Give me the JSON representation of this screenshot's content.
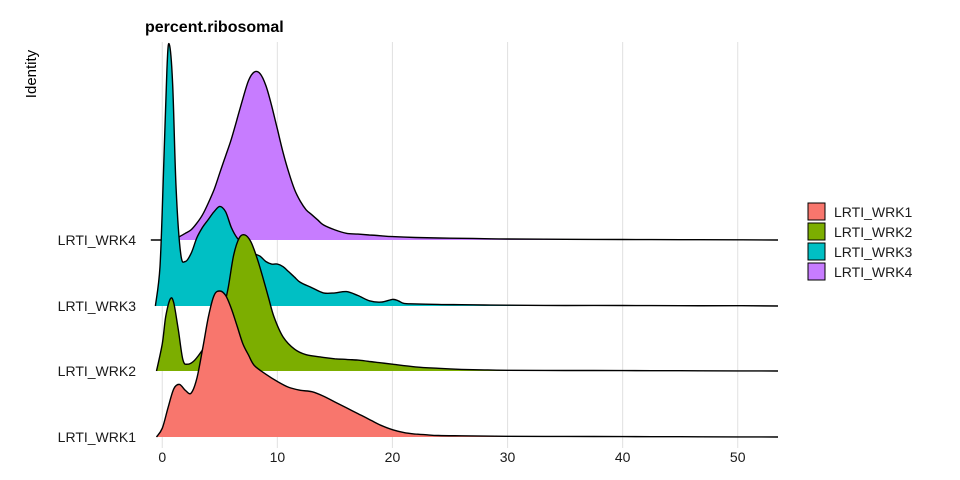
{
  "chart_data": {
    "type": "area",
    "subtype": "ridgeline",
    "title": "percent.ribosomal",
    "xlabel": "",
    "ylabel": "Identity",
    "xlim": [
      -1.5,
      53.5
    ],
    "x_ticks": [
      0,
      10,
      20,
      30,
      40,
      50
    ],
    "grid": {
      "vertical_major": true,
      "horizontal": false
    },
    "legend": {
      "position": "right",
      "entries": [
        "LRTI_WRK1",
        "LRTI_WRK2",
        "LRTI_WRK3",
        "LRTI_WRK4"
      ]
    },
    "categories": [
      "LRTI_WRK1",
      "LRTI_WRK2",
      "LRTI_WRK3",
      "LRTI_WRK4"
    ],
    "colors": [
      "#F8766D",
      "#7CAE00",
      "#00BFC4",
      "#C77CFF"
    ],
    "series": [
      {
        "name": "LRTI_WRK1",
        "x": [
          -0.5,
          0,
          0.5,
          1,
          1.5,
          2,
          2.5,
          3,
          3.5,
          4,
          4.5,
          5,
          5.5,
          6,
          6.5,
          7,
          7.5,
          8,
          9,
          10,
          11,
          12,
          13,
          14,
          15,
          16,
          17,
          18,
          19,
          20,
          21,
          22,
          23,
          24,
          26,
          30,
          35,
          40,
          45,
          50,
          53.5
        ],
        "y": [
          0.0,
          0.06,
          0.2,
          0.33,
          0.36,
          0.32,
          0.3,
          0.4,
          0.6,
          0.82,
          0.97,
          1.0,
          0.97,
          0.88,
          0.76,
          0.64,
          0.56,
          0.49,
          0.43,
          0.38,
          0.34,
          0.32,
          0.31,
          0.28,
          0.24,
          0.2,
          0.16,
          0.12,
          0.08,
          0.05,
          0.03,
          0.02,
          0.015,
          0.01,
          0.008,
          0.005,
          0.004,
          0.003,
          0.002,
          0.001,
          0.0
        ]
      },
      {
        "name": "LRTI_WRK2",
        "x": [
          -0.5,
          0,
          0.3,
          0.7,
          1.0,
          1.4,
          1.8,
          2.2,
          2.7,
          3.2,
          3.7,
          4.2,
          4.7,
          5.2,
          5.7,
          6.2,
          6.7,
          7.2,
          7.7,
          8.2,
          8.7,
          9.2,
          9.7,
          10.5,
          11.5,
          12.5,
          14,
          15,
          16,
          17,
          18,
          19,
          20,
          22,
          24,
          26,
          28,
          30,
          35,
          40,
          45,
          50,
          53.5
        ],
        "y": [
          0.0,
          0.2,
          0.4,
          0.53,
          0.5,
          0.3,
          0.08,
          0.05,
          0.07,
          0.12,
          0.18,
          0.25,
          0.32,
          0.42,
          0.6,
          0.85,
          0.98,
          1.0,
          0.95,
          0.84,
          0.7,
          0.55,
          0.4,
          0.25,
          0.16,
          0.12,
          0.1,
          0.09,
          0.085,
          0.08,
          0.07,
          0.06,
          0.05,
          0.03,
          0.02,
          0.012,
          0.008,
          0.005,
          0.004,
          0.003,
          0.002,
          0.001,
          0.0
        ]
      },
      {
        "name": "LRTI_WRK3",
        "x": [
          -0.6,
          -0.2,
          0.1,
          0.4,
          0.6,
          0.9,
          1.2,
          1.6,
          2.0,
          2.5,
          3.0,
          3.5,
          4.0,
          4.5,
          5.0,
          5.5,
          6.0,
          6.5,
          7.0,
          7.5,
          8.0,
          8.5,
          9.0,
          9.5,
          10.0,
          10.5,
          11,
          11.5,
          12,
          13,
          14,
          15,
          16,
          17,
          18,
          19,
          20,
          20.5,
          21,
          22,
          24,
          26,
          28,
          30,
          35,
          40,
          45,
          50,
          53.5
        ],
        "y": [
          0.0,
          0.15,
          0.5,
          0.9,
          1.0,
          0.85,
          0.45,
          0.2,
          0.17,
          0.2,
          0.26,
          0.3,
          0.33,
          0.36,
          0.38,
          0.36,
          0.3,
          0.26,
          0.24,
          0.22,
          0.2,
          0.19,
          0.17,
          0.16,
          0.16,
          0.15,
          0.13,
          0.11,
          0.09,
          0.07,
          0.05,
          0.05,
          0.055,
          0.04,
          0.02,
          0.015,
          0.025,
          0.02,
          0.01,
          0.008,
          0.006,
          0.005,
          0.004,
          0.003,
          0.002,
          0.002,
          0.001,
          0.001,
          0.0
        ]
      },
      {
        "name": "LRTI_WRK4",
        "x": [
          -1.0,
          0.5,
          1.0,
          1.5,
          2.0,
          2.5,
          3.0,
          3.5,
          4.0,
          4.5,
          5.0,
          5.5,
          6.0,
          6.5,
          7.0,
          7.5,
          8.0,
          8.5,
          9.0,
          9.5,
          10.0,
          10.5,
          11.0,
          11.5,
          12.0,
          12.5,
          13.0,
          13.5,
          14,
          15,
          16,
          17,
          18,
          19,
          20,
          22,
          24,
          26,
          28,
          30,
          35,
          40,
          45,
          50,
          53.5
        ],
        "y": [
          0.0,
          0.0,
          0.003,
          0.02,
          0.04,
          0.06,
          0.1,
          0.15,
          0.22,
          0.3,
          0.4,
          0.5,
          0.6,
          0.72,
          0.84,
          0.95,
          1.0,
          0.99,
          0.92,
          0.8,
          0.66,
          0.52,
          0.4,
          0.3,
          0.23,
          0.18,
          0.15,
          0.12,
          0.09,
          0.06,
          0.04,
          0.035,
          0.03,
          0.025,
          0.02,
          0.015,
          0.012,
          0.01,
          0.008,
          0.006,
          0.004,
          0.003,
          0.002,
          0.001,
          0.0
        ]
      }
    ]
  }
}
